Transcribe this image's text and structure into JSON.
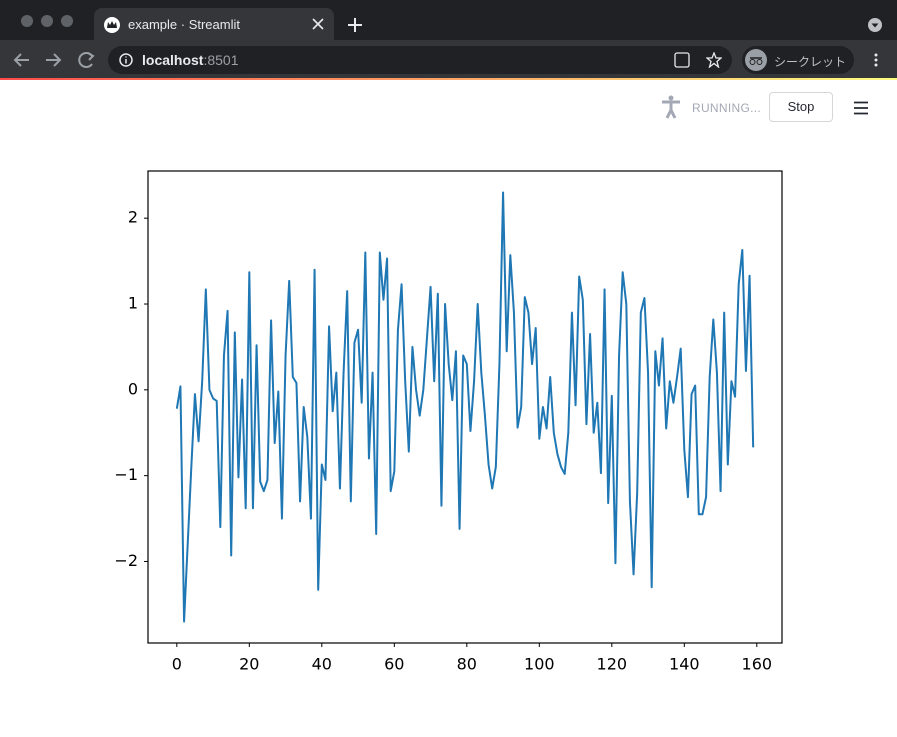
{
  "browser": {
    "tab_title": "example · Streamlit",
    "url_host": "localhost",
    "url_port": ":8501",
    "profile_label": "シークレット"
  },
  "app": {
    "status": "RUNNING...",
    "stop_button": "Stop"
  },
  "chart_data": {
    "type": "line",
    "color": "#1f77b4",
    "grid": false,
    "x": [
      0,
      1,
      2,
      3,
      4,
      5,
      6,
      7,
      8,
      9,
      10,
      11,
      12,
      13,
      14,
      15,
      16,
      17,
      18,
      19,
      20,
      21,
      22,
      23,
      24,
      25,
      26,
      27,
      28,
      29,
      30,
      31,
      32,
      33,
      34,
      35,
      36,
      37,
      38,
      39,
      40,
      41,
      42,
      43,
      44,
      45,
      46,
      47,
      48,
      49,
      50,
      51,
      52,
      53,
      54,
      55,
      56,
      57,
      58,
      59,
      60,
      61,
      62,
      63,
      64,
      65,
      66,
      67,
      68,
      69,
      70,
      71,
      72,
      73,
      74,
      75,
      76,
      77,
      78,
      79,
      80,
      81,
      82,
      83,
      84,
      85,
      86,
      87,
      88,
      89,
      90,
      91,
      92,
      93,
      94,
      95,
      96,
      97,
      98,
      99,
      100,
      101,
      102,
      103,
      104,
      105,
      106,
      107,
      108,
      109,
      110,
      111,
      112,
      113,
      114,
      115,
      116,
      117,
      118,
      119,
      120,
      121,
      122,
      123,
      124,
      125,
      126,
      127,
      128,
      129,
      130,
      131,
      132,
      133,
      134,
      135,
      136,
      137,
      138,
      139,
      140,
      141,
      142,
      143,
      144,
      145,
      146,
      147,
      148,
      149,
      150,
      151,
      152,
      153,
      154,
      155,
      156,
      157,
      158,
      159
    ],
    "values": [
      -0.22,
      0.04,
      -2.7,
      -1.8,
      -0.9,
      -0.05,
      -0.6,
      0.1,
      1.17,
      0.0,
      -0.1,
      -0.13,
      -1.6,
      0.4,
      0.92,
      -1.93,
      0.67,
      -1.02,
      0.12,
      -1.38,
      1.37,
      -1.38,
      0.52,
      -1.07,
      -1.18,
      -1.05,
      0.81,
      -0.62,
      -0.02,
      -1.5,
      0.4,
      1.27,
      0.15,
      0.08,
      -1.3,
      -0.2,
      -0.55,
      -1.5,
      1.4,
      -2.33,
      -0.87,
      -1.05,
      0.74,
      -0.25,
      0.2,
      -1.15,
      0.2,
      1.15,
      -1.3,
      0.55,
      0.7,
      -0.15,
      1.6,
      -0.8,
      0.2,
      -1.68,
      1.6,
      1.05,
      1.53,
      -1.18,
      -0.95,
      0.7,
      1.23,
      0.1,
      -0.72,
      0.5,
      0.0,
      -0.3,
      0.0,
      0.6,
      1.2,
      0.1,
      1.12,
      -1.35,
      1.0,
      0.3,
      -0.12,
      0.45,
      -1.62,
      0.4,
      0.3,
      -0.48,
      0.1,
      1.0,
      0.2,
      -0.3,
      -0.87,
      -1.15,
      -0.9,
      0.3,
      2.3,
      0.45,
      1.57,
      0.9,
      -0.44,
      -0.2,
      1.08,
      0.9,
      0.3,
      0.72,
      -0.57,
      -0.2,
      -0.45,
      0.15,
      -0.5,
      -0.75,
      -0.9,
      -0.98,
      -0.5,
      0.9,
      -0.18,
      1.32,
      1.05,
      -0.4,
      0.65,
      -0.5,
      -0.15,
      -0.97,
      1.17,
      -1.32,
      -0.07,
      -2.02,
      0.4,
      1.37,
      1.0,
      -1.3,
      -2.15,
      -1.2,
      0.9,
      1.07,
      0.2,
      -2.3,
      0.45,
      0.05,
      0.6,
      -0.45,
      0.1,
      -0.15,
      0.15,
      0.48,
      -0.7,
      -1.25,
      -0.05,
      0.05,
      -1.45,
      -1.45,
      -1.25,
      0.15,
      0.82,
      0.2,
      -1.18,
      0.9,
      -0.87,
      0.1,
      -0.08,
      1.23,
      1.63,
      0.22,
      1.33,
      -0.67
    ],
    "xlim": [
      -7.95,
      166.95
    ],
    "ylim": [
      -2.95,
      2.55
    ],
    "xticks": [
      0,
      20,
      40,
      60,
      80,
      100,
      120,
      140,
      160
    ],
    "yticks": [
      {
        "value": -2,
        "label": "−2"
      },
      {
        "value": -1,
        "label": "−1"
      },
      0,
      1,
      2
    ]
  }
}
